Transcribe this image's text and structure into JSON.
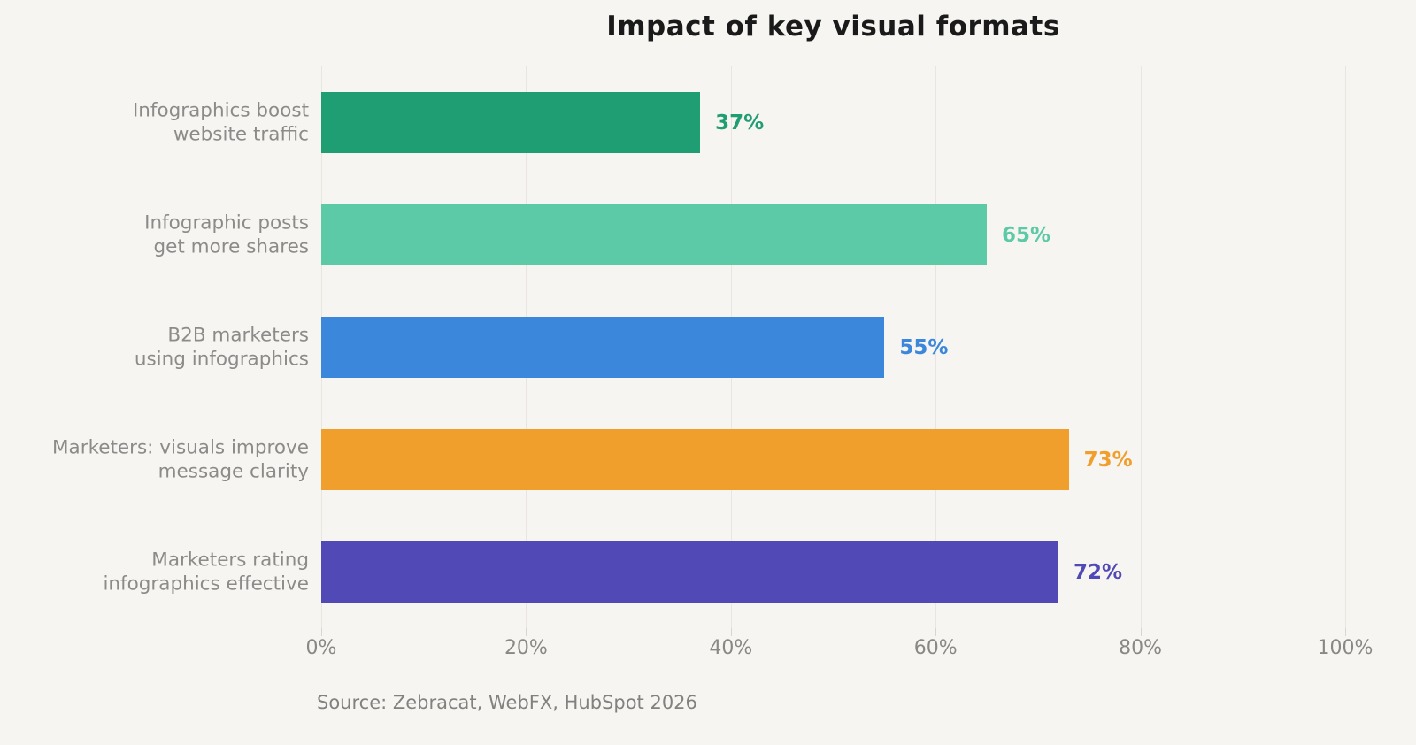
{
  "title": "Impact of key visual formats",
  "source": "Source: Zebracat, WebFX, HubSpot 2026",
  "chart_data": {
    "type": "bar",
    "orientation": "horizontal",
    "title": "Impact of key visual formats",
    "categories": [
      "Infographics boost\nwebsite traffic",
      "Infographic posts\nget more shares",
      "B2B marketers\nusing infographics",
      "Marketers: visuals improve\nmessage clarity",
      "Marketers rating\ninfographics effective"
    ],
    "values": [
      37,
      65,
      55,
      73,
      72
    ],
    "value_labels": [
      "37%",
      "65%",
      "55%",
      "73%",
      "72%"
    ],
    "bar_colors": [
      "#1f9e73",
      "#5cc9a7",
      "#3a87db",
      "#f09e2c",
      "#5149b5"
    ],
    "xlabel": "",
    "ylabel": "",
    "xlim": [
      0,
      100
    ],
    "x_tick_values": [
      0,
      20,
      40,
      60,
      80,
      100
    ],
    "x_tick_labels": [
      "0%",
      "20%",
      "40%",
      "60%",
      "80%",
      "100%"
    ],
    "grid": "vertical-light",
    "legend": "none",
    "source_note": "Source: Zebracat, WebFX, HubSpot 2026",
    "colors": {
      "background": "#f7f5f2",
      "gridline": "#e9e6e2",
      "category_label": "#8c8b89",
      "tick_label": "#8a8884",
      "title": "#1a1a1a",
      "source": "#838180"
    }
  }
}
